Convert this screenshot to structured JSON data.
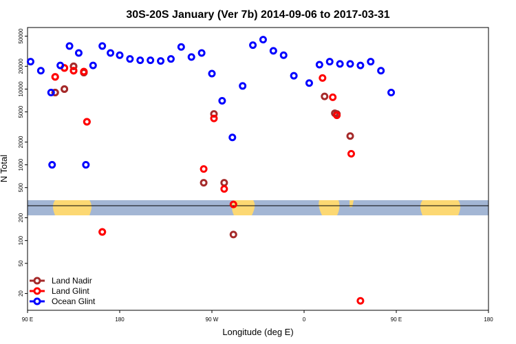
{
  "chart_data": {
    "type": "scatter",
    "title": "30S-20S January (Ver 7b)   2014-09-06 to 2017-03-31",
    "xlabel": "Longitude (deg E)",
    "ylabel": "N Total",
    "y_scale": "log",
    "x_ticks": [
      "90 E",
      "180",
      "90 W",
      "0",
      "90 E",
      "180"
    ],
    "y_ticks": [
      "20",
      "50",
      "100",
      "200",
      "500",
      "1000",
      "2000",
      "5000",
      "10000",
      "20000",
      "50000"
    ],
    "legend_position": "bottom-left",
    "legend": [
      "Land Nadir",
      "Land Glint",
      "Ocean Glint"
    ],
    "grid": false,
    "series": [
      {
        "name": "Land Nadir",
        "color": "#a52a2a",
        "points": [
          [
            117,
            9000
          ],
          [
            126,
            10000
          ],
          [
            135,
            20000
          ],
          [
            145,
            16500
          ],
          [
            -88,
            4700
          ],
          [
            -98,
            580
          ],
          [
            -78,
            580
          ],
          [
            -69,
            120
          ],
          [
            20,
            8000
          ],
          [
            30,
            4800
          ],
          [
            32,
            4700
          ],
          [
            45,
            2400
          ],
          [
            117,
            9000
          ],
          [
            126,
            10000
          ],
          [
            135,
            20000
          ],
          [
            145,
            16500
          ]
        ]
      },
      {
        "name": "Land Glint",
        "color": "#ff0000",
        "points": [
          [
            117,
            14500
          ],
          [
            126,
            19000
          ],
          [
            135,
            17500
          ],
          [
            145,
            17000
          ],
          [
            148,
            3700
          ],
          [
            163,
            130
          ],
          [
            -88,
            4100
          ],
          [
            -98,
            880
          ],
          [
            -78,
            480
          ],
          [
            -69,
            300
          ],
          [
            18,
            14000
          ],
          [
            28,
            7800
          ],
          [
            32,
            4500
          ],
          [
            46,
            1400
          ],
          [
            55,
            16
          ],
          [
            117,
            14500
          ],
          [
            126,
            19000
          ],
          [
            135,
            17500
          ],
          [
            145,
            17000
          ],
          [
            148,
            3700
          ],
          [
            163,
            130
          ]
        ]
      },
      {
        "name": "Ocean Glint",
        "color": "#0000ff",
        "points": [
          [
            93,
            23000
          ],
          [
            103,
            17500
          ],
          [
            113,
            9000
          ],
          [
            147,
            1000
          ],
          [
            154,
            20500
          ],
          [
            163,
            37000
          ],
          [
            171,
            30000
          ],
          [
            180,
            28000
          ],
          [
            -170,
            25000
          ],
          [
            -160,
            24000
          ],
          [
            -150,
            24000
          ],
          [
            -140,
            23500
          ],
          [
            -130,
            25000
          ],
          [
            -120,
            36000
          ],
          [
            -110,
            26500
          ],
          [
            -100,
            30000
          ],
          [
            -90,
            16000
          ],
          [
            -80,
            7000
          ],
          [
            -70,
            2300
          ],
          [
            -60,
            11000
          ],
          [
            -50,
            38000
          ],
          [
            -40,
            45000
          ],
          [
            -30,
            32000
          ],
          [
            -20,
            28000
          ],
          [
            -10,
            15000
          ],
          [
            5,
            12000
          ],
          [
            15,
            21000
          ],
          [
            25,
            23000
          ],
          [
            35,
            21500
          ],
          [
            45,
            21500
          ],
          [
            55,
            20500
          ],
          [
            65,
            23000
          ],
          [
            75,
            17500
          ],
          [
            85,
            9000
          ],
          [
            114,
            1000
          ],
          [
            122,
            20500
          ],
          [
            131,
            37000
          ],
          [
            140,
            30000
          ]
        ]
      }
    ]
  }
}
